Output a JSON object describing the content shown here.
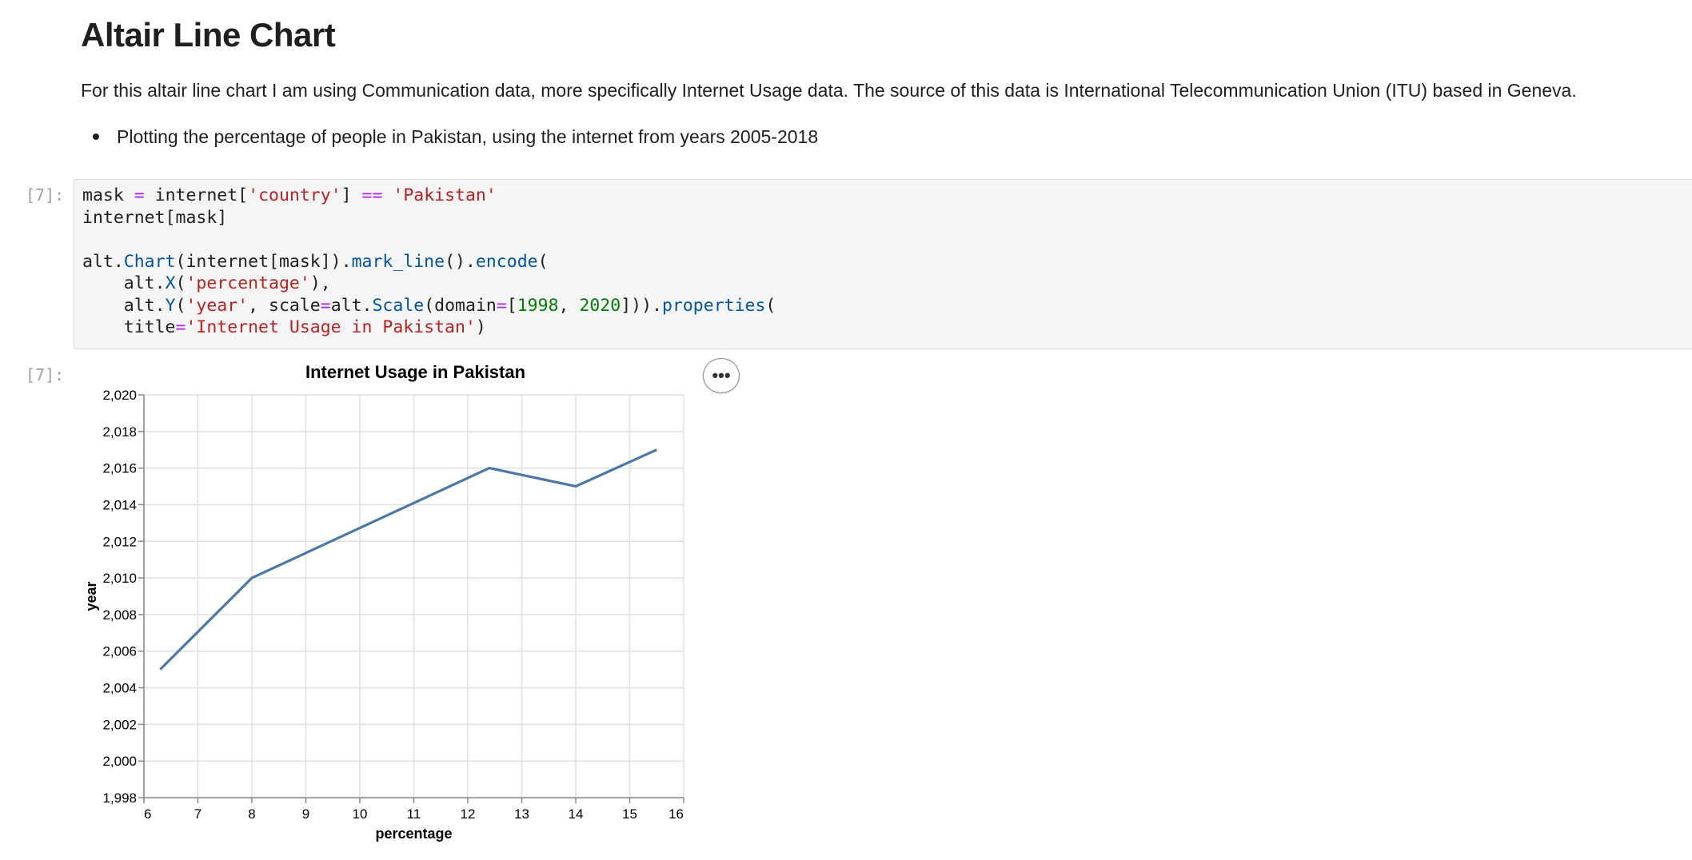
{
  "markdown": {
    "title": "Altair Line Chart",
    "paragraph": "For this altair line chart I am using Communication data, more specifically Internet Usage data. The source of this data is International Telecommunication Union (ITU) based in Geneva.",
    "bullet": "Plotting the percentage of people in Pakistan, using the internet from years 2005-2018"
  },
  "cell": {
    "input_prompt": "[7]:",
    "output_prompt": "[7]:",
    "code_lines": [
      [
        {
          "t": "mask "
        },
        {
          "t": "=",
          "c": "k"
        },
        {
          "t": " internet["
        },
        {
          "t": "'country'",
          "c": "s"
        },
        {
          "t": "] "
        },
        {
          "t": "==",
          "c": "k"
        },
        {
          "t": " "
        },
        {
          "t": "'Pakistan'",
          "c": "s"
        }
      ],
      [
        {
          "t": "internet[mask]"
        }
      ],
      [
        {
          "t": ""
        }
      ],
      [
        {
          "t": "alt."
        },
        {
          "t": "Chart",
          "c": "f"
        },
        {
          "t": "(internet[mask])."
        },
        {
          "t": "mark_line",
          "c": "f"
        },
        {
          "t": "()."
        },
        {
          "t": "encode",
          "c": "f"
        },
        {
          "t": "("
        }
      ],
      [
        {
          "t": "    alt."
        },
        {
          "t": "X",
          "c": "f"
        },
        {
          "t": "("
        },
        {
          "t": "'percentage'",
          "c": "s"
        },
        {
          "t": "),"
        }
      ],
      [
        {
          "t": "    alt."
        },
        {
          "t": "Y",
          "c": "f"
        },
        {
          "t": "("
        },
        {
          "t": "'year'",
          "c": "s"
        },
        {
          "t": ", scale"
        },
        {
          "t": "=",
          "c": "k"
        },
        {
          "t": "alt."
        },
        {
          "t": "Scale",
          "c": "f"
        },
        {
          "t": "(domain"
        },
        {
          "t": "=",
          "c": "k"
        },
        {
          "t": "["
        },
        {
          "t": "1998",
          "c": "n"
        },
        {
          "t": ", "
        },
        {
          "t": "2020",
          "c": "n"
        },
        {
          "t": "]))."
        },
        {
          "t": "properties",
          "c": "f"
        },
        {
          "t": "("
        }
      ],
      [
        {
          "t": "    title"
        },
        {
          "t": "=",
          "c": "k"
        },
        {
          "t": "'Internet Usage in Pakistan'",
          "c": "s"
        },
        {
          "t": ")"
        }
      ]
    ]
  },
  "actions_menu": {
    "icon": "more-horizontal-icon",
    "label": "•••"
  },
  "chart_data": {
    "type": "line",
    "title": "Internet Usage in Pakistan",
    "xlabel": "percentage",
    "ylabel": "year",
    "xlim": [
      6,
      16
    ],
    "ylim": [
      1998,
      2020
    ],
    "x_ticks": [
      6,
      7,
      8,
      9,
      10,
      11,
      12,
      13,
      14,
      15,
      16
    ],
    "y_ticks": [
      1998,
      2000,
      2002,
      2004,
      2006,
      2008,
      2010,
      2012,
      2014,
      2016,
      2018,
      2020
    ],
    "grid": true,
    "series": [
      {
        "color": "#4c78a8",
        "points": [
          {
            "x": 6.3,
            "y": 2005
          },
          {
            "x": 8.0,
            "y": 2010
          },
          {
            "x": 12.4,
            "y": 2016
          },
          {
            "x": 14.0,
            "y": 2015
          },
          {
            "x": 15.5,
            "y": 2017
          }
        ]
      }
    ]
  }
}
